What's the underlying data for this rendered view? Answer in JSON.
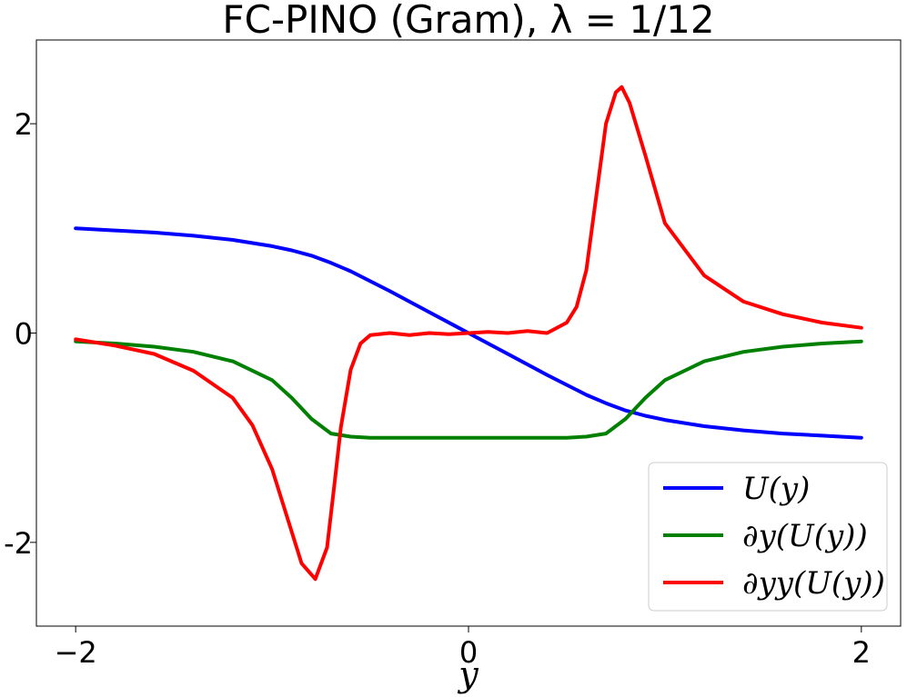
{
  "chart_data": {
    "type": "line",
    "title": "FC-PINO (Gram), λ = 1/12",
    "xlabel": "y",
    "ylabel": "",
    "xlim": [
      -2.2,
      2.2
    ],
    "ylim": [
      -2.8,
      2.8
    ],
    "x_ticks": [
      {
        "value": -2,
        "label": "−2"
      },
      {
        "value": 0,
        "label": "0"
      },
      {
        "value": 2,
        "label": "2"
      }
    ],
    "y_ticks": [
      {
        "value": 2,
        "label": "2"
      },
      {
        "value": 0,
        "label": "0"
      },
      {
        "value": -2,
        "label": "-2"
      }
    ],
    "grid": false,
    "legend_position": "lower-right",
    "series": [
      {
        "name": "U(y)",
        "color": "#0000ff",
        "x": [
          -2.0,
          -1.8,
          -1.6,
          -1.4,
          -1.2,
          -1.0,
          -0.9,
          -0.8,
          -0.7,
          -0.6,
          -0.4,
          -0.2,
          0.0,
          0.2,
          0.4,
          0.6,
          0.7,
          0.8,
          0.9,
          1.0,
          1.2,
          1.4,
          1.6,
          1.8,
          2.0
        ],
        "values": [
          1.0,
          0.98,
          0.96,
          0.93,
          0.89,
          0.83,
          0.79,
          0.74,
          0.67,
          0.59,
          0.4,
          0.2,
          0.0,
          -0.2,
          -0.4,
          -0.59,
          -0.67,
          -0.74,
          -0.79,
          -0.83,
          -0.89,
          -0.93,
          -0.96,
          -0.98,
          -1.0
        ]
      },
      {
        "name": "∂y(U(y))",
        "color": "#008000",
        "x": [
          -2.0,
          -1.8,
          -1.6,
          -1.4,
          -1.2,
          -1.0,
          -0.9,
          -0.8,
          -0.7,
          -0.6,
          -0.5,
          -0.4,
          0.0,
          0.4,
          0.5,
          0.6,
          0.7,
          0.8,
          0.9,
          1.0,
          1.2,
          1.4,
          1.6,
          1.8,
          2.0
        ],
        "values": [
          -0.08,
          -0.1,
          -0.13,
          -0.18,
          -0.27,
          -0.45,
          -0.62,
          -0.82,
          -0.96,
          -0.99,
          -1.0,
          -1.0,
          -1.0,
          -1.0,
          -1.0,
          -0.99,
          -0.96,
          -0.82,
          -0.62,
          -0.45,
          -0.27,
          -0.18,
          -0.13,
          -0.1,
          -0.08
        ]
      },
      {
        "name": "∂yy(U(y))",
        "color": "#ff0000",
        "x": [
          -2.0,
          -1.8,
          -1.6,
          -1.4,
          -1.2,
          -1.1,
          -1.0,
          -0.9,
          -0.85,
          -0.78,
          -0.72,
          -0.68,
          -0.65,
          -0.6,
          -0.55,
          -0.5,
          -0.4,
          -0.3,
          -0.2,
          -0.1,
          0.0,
          0.1,
          0.2,
          0.3,
          0.4,
          0.5,
          0.55,
          0.6,
          0.65,
          0.7,
          0.75,
          0.78,
          0.82,
          0.9,
          1.0,
          1.2,
          1.4,
          1.6,
          1.8,
          2.0
        ],
        "values": [
          -0.06,
          -0.12,
          -0.2,
          -0.36,
          -0.62,
          -0.88,
          -1.3,
          -1.9,
          -2.2,
          -2.35,
          -2.05,
          -1.4,
          -0.9,
          -0.35,
          -0.1,
          -0.02,
          0.0,
          -0.02,
          0.0,
          -0.01,
          0.0,
          0.01,
          0.0,
          0.02,
          0.0,
          0.1,
          0.25,
          0.6,
          1.3,
          2.0,
          2.3,
          2.35,
          2.2,
          1.7,
          1.05,
          0.55,
          0.3,
          0.18,
          0.1,
          0.05
        ]
      }
    ]
  }
}
